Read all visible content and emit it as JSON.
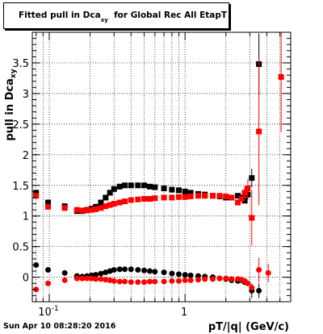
{
  "title": {
    "prefix": "Fitted pull in Dca",
    "subscript": "xy",
    "suffix": "for Global Rec All EtapT"
  },
  "footer_timestamp": "Sun Apr 10 08:28:20 2016",
  "chart_data": {
    "type": "scatter",
    "xlabel": "pT/|q| (GeV/c)",
    "ylabel": "pull in Dca",
    "ylabel_subscript": "xy",
    "xscale": "log",
    "xlim": [
      0.075,
      6.0
    ],
    "ylim": [
      -0.4,
      4.0
    ],
    "grid": true,
    "x_tick_labels": [
      {
        "value": 0.1,
        "label": "10",
        "exponent": "-1"
      },
      {
        "value": 1,
        "label": "1",
        "exponent": ""
      }
    ],
    "y_ticks": [
      0,
      0.5,
      1,
      1.5,
      2,
      2.5,
      3,
      3.5
    ],
    "y_tick_labels": [
      "0",
      "0.5",
      "1",
      "1.5",
      "2",
      "2.5",
      "3",
      "3.5"
    ],
    "colors": {
      "black_series": "#000000",
      "red_series": "#ff0000"
    },
    "series": [
      {
        "color": "#000000",
        "marker": "square",
        "points": [
          [
            0.08,
            1.38
          ],
          [
            0.098,
            1.22
          ],
          [
            0.13,
            1.16
          ],
          [
            0.16,
            1.08
          ],
          [
            0.175,
            1.08
          ],
          [
            0.19,
            1.1
          ],
          [
            0.205,
            1.12
          ],
          [
            0.22,
            1.15
          ],
          [
            0.24,
            1.22
          ],
          [
            0.26,
            1.3
          ],
          [
            0.28,
            1.38
          ],
          [
            0.3,
            1.44
          ],
          [
            0.33,
            1.48
          ],
          [
            0.36,
            1.5
          ],
          [
            0.4,
            1.5
          ],
          [
            0.45,
            1.5
          ],
          [
            0.5,
            1.5
          ],
          [
            0.55,
            1.48
          ],
          [
            0.6,
            1.47
          ],
          [
            0.7,
            1.45
          ],
          [
            0.8,
            1.43
          ],
          [
            0.9,
            1.42
          ],
          [
            1.0,
            1.4
          ],
          [
            1.1,
            1.38
          ],
          [
            1.25,
            1.36
          ],
          [
            1.4,
            1.35
          ],
          [
            1.6,
            1.33
          ],
          [
            1.8,
            1.32
          ],
          [
            2.0,
            1.3
          ],
          [
            2.2,
            1.3
          ],
          [
            2.45,
            1.33
          ],
          [
            2.6,
            1.3
          ],
          [
            2.75,
            1.25
          ],
          [
            2.9,
            1.35
          ],
          [
            3.1,
            1.62
          ],
          [
            3.5,
            3.48
          ]
        ],
        "errors": [
          [
            3.5,
            0.5
          ],
          [
            3.1,
            0.15
          ],
          [
            2.9,
            0.08
          ]
        ]
      },
      {
        "color": "#ff0000",
        "marker": "square",
        "points": [
          [
            0.08,
            1.33
          ],
          [
            0.098,
            1.15
          ],
          [
            0.13,
            1.13
          ],
          [
            0.16,
            1.1
          ],
          [
            0.175,
            1.09
          ],
          [
            0.19,
            1.09
          ],
          [
            0.205,
            1.1
          ],
          [
            0.22,
            1.11
          ],
          [
            0.24,
            1.13
          ],
          [
            0.26,
            1.16
          ],
          [
            0.28,
            1.18
          ],
          [
            0.3,
            1.2
          ],
          [
            0.33,
            1.22
          ],
          [
            0.36,
            1.24
          ],
          [
            0.4,
            1.26
          ],
          [
            0.45,
            1.27
          ],
          [
            0.5,
            1.28
          ],
          [
            0.55,
            1.28
          ],
          [
            0.6,
            1.29
          ],
          [
            0.7,
            1.3
          ],
          [
            0.8,
            1.3
          ],
          [
            0.9,
            1.31
          ],
          [
            1.0,
            1.31
          ],
          [
            1.1,
            1.32
          ],
          [
            1.25,
            1.33
          ],
          [
            1.4,
            1.33
          ],
          [
            1.6,
            1.33
          ],
          [
            1.8,
            1.33
          ],
          [
            2.0,
            1.32
          ],
          [
            2.2,
            1.3
          ],
          [
            2.45,
            1.22
          ],
          [
            2.6,
            1.28
          ],
          [
            2.75,
            1.38
          ],
          [
            2.9,
            1.45
          ],
          [
            3.1,
            0.97
          ],
          [
            3.5,
            2.38
          ],
          [
            5.1,
            3.27
          ]
        ],
        "errors": [
          [
            3.5,
            1.2
          ],
          [
            5.1,
            0.9
          ],
          [
            3.1,
            0.45
          ],
          [
            2.9,
            0.15
          ],
          [
            2.75,
            0.1
          ]
        ]
      },
      {
        "color": "#000000",
        "marker": "circle",
        "points": [
          [
            0.08,
            0.2
          ],
          [
            0.098,
            0.12
          ],
          [
            0.13,
            0.07
          ],
          [
            0.16,
            0.02
          ],
          [
            0.175,
            0.01
          ],
          [
            0.19,
            0.02
          ],
          [
            0.205,
            0.03
          ],
          [
            0.22,
            0.04
          ],
          [
            0.24,
            0.06
          ],
          [
            0.26,
            0.08
          ],
          [
            0.28,
            0.1
          ],
          [
            0.3,
            0.12
          ],
          [
            0.33,
            0.13
          ],
          [
            0.36,
            0.13
          ],
          [
            0.4,
            0.13
          ],
          [
            0.45,
            0.12
          ],
          [
            0.5,
            0.11
          ],
          [
            0.55,
            0.1
          ],
          [
            0.6,
            0.09
          ],
          [
            0.7,
            0.08
          ],
          [
            0.8,
            0.06
          ],
          [
            0.9,
            0.05
          ],
          [
            1.0,
            0.04
          ],
          [
            1.1,
            0.03
          ],
          [
            1.25,
            0.02
          ],
          [
            1.4,
            0.01
          ],
          [
            1.6,
            0.0
          ],
          [
            1.8,
            -0.02
          ],
          [
            2.0,
            -0.03
          ],
          [
            2.2,
            -0.05
          ],
          [
            2.45,
            -0.06
          ],
          [
            2.6,
            -0.05
          ],
          [
            2.75,
            -0.08
          ],
          [
            2.9,
            -0.1
          ],
          [
            3.1,
            -0.22
          ],
          [
            3.5,
            -0.22
          ]
        ],
        "errors": [
          [
            3.5,
            0.12
          ],
          [
            3.1,
            0.12
          ]
        ]
      },
      {
        "color": "#ff0000",
        "marker": "circle",
        "points": [
          [
            0.08,
            -0.2
          ],
          [
            0.098,
            -0.1
          ],
          [
            0.13,
            -0.05
          ],
          [
            0.16,
            -0.02
          ],
          [
            0.175,
            -0.02
          ],
          [
            0.19,
            -0.02
          ],
          [
            0.205,
            -0.02
          ],
          [
            0.22,
            -0.03
          ],
          [
            0.24,
            -0.03
          ],
          [
            0.26,
            -0.04
          ],
          [
            0.28,
            -0.05
          ],
          [
            0.3,
            -0.06
          ],
          [
            0.33,
            -0.07
          ],
          [
            0.36,
            -0.07
          ],
          [
            0.4,
            -0.08
          ],
          [
            0.45,
            -0.08
          ],
          [
            0.5,
            -0.08
          ],
          [
            0.55,
            -0.07
          ],
          [
            0.6,
            -0.07
          ],
          [
            0.7,
            -0.07
          ],
          [
            0.8,
            -0.06
          ],
          [
            0.9,
            -0.06
          ],
          [
            1.0,
            -0.05
          ],
          [
            1.1,
            -0.05
          ],
          [
            1.25,
            -0.04
          ],
          [
            1.4,
            -0.03
          ],
          [
            1.6,
            -0.03
          ],
          [
            1.8,
            -0.02
          ],
          [
            2.0,
            -0.02
          ],
          [
            2.2,
            -0.03
          ],
          [
            2.45,
            -0.03
          ],
          [
            2.6,
            -0.04
          ],
          [
            2.75,
            -0.06
          ],
          [
            2.9,
            -0.1
          ],
          [
            3.1,
            -0.17
          ],
          [
            3.5,
            0.12
          ],
          [
            4.1,
            0.07
          ]
        ],
        "errors": [
          [
            3.5,
            0.2
          ],
          [
            4.1,
            0.15
          ]
        ]
      }
    ]
  }
}
